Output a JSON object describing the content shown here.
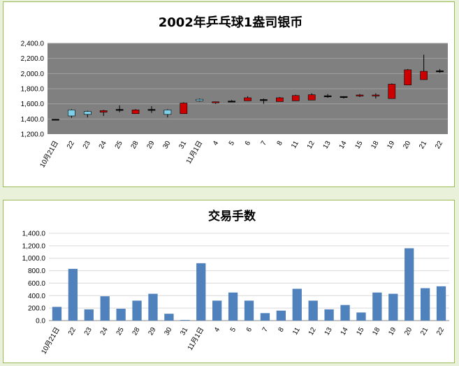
{
  "categories": [
    "10月21日",
    "22",
    "23",
    "24",
    "25",
    "28",
    "29",
    "30",
    "31",
    "11月1日",
    "4",
    "5",
    "6",
    "7",
    "8",
    "11",
    "12",
    "13",
    "14",
    "15",
    "18",
    "19",
    "20",
    "21",
    "22"
  ],
  "colors": {
    "up_candle": "#cc0000",
    "down_candle": "#7ecfe8",
    "volume_bar": "#4f81bd",
    "candle_plot_bg": "#808080",
    "grid_light": "#a0a0a0",
    "grid_volume": "#d9d9d9",
    "panel_border": "#9bbb59",
    "page_bg": "#e9f1da"
  },
  "chart_data": [
    {
      "type": "candlestick",
      "title": "2002年乒乓球1盎司银币",
      "ylim": [
        1200,
        2400
      ],
      "yticks": [
        "1,200.0",
        "1,400.0",
        "1,600.0",
        "1,800.0",
        "2,000.0",
        "2,200.0",
        "2,400.0"
      ],
      "grid": true,
      "series": [
        {
          "x": "10月21日",
          "open": 1390,
          "high": 1395,
          "low": 1385,
          "close": 1390
        },
        {
          "x": "22",
          "open": 1520,
          "high": 1530,
          "low": 1415,
          "close": 1440
        },
        {
          "x": "23",
          "open": 1500,
          "high": 1510,
          "low": 1420,
          "close": 1460
        },
        {
          "x": "24",
          "open": 1490,
          "high": 1520,
          "low": 1440,
          "close": 1510
        },
        {
          "x": "25",
          "open": 1520,
          "high": 1580,
          "low": 1490,
          "close": 1520
        },
        {
          "x": "28",
          "open": 1470,
          "high": 1530,
          "low": 1470,
          "close": 1520
        },
        {
          "x": "29",
          "open": 1520,
          "high": 1570,
          "low": 1480,
          "close": 1520
        },
        {
          "x": "30",
          "open": 1520,
          "high": 1530,
          "low": 1420,
          "close": 1460
        },
        {
          "x": "31",
          "open": 1470,
          "high": 1620,
          "low": 1470,
          "close": 1610
        },
        {
          "x": "11月1日",
          "open": 1660,
          "high": 1670,
          "low": 1630,
          "close": 1640
        },
        {
          "x": "4",
          "open": 1610,
          "high": 1630,
          "low": 1600,
          "close": 1620
        },
        {
          "x": "5",
          "open": 1630,
          "high": 1650,
          "low": 1620,
          "close": 1630
        },
        {
          "x": "6",
          "open": 1640,
          "high": 1700,
          "low": 1640,
          "close": 1680
        },
        {
          "x": "7",
          "open": 1650,
          "high": 1670,
          "low": 1600,
          "close": 1650
        },
        {
          "x": "8",
          "open": 1630,
          "high": 1690,
          "low": 1630,
          "close": 1680
        },
        {
          "x": "11",
          "open": 1640,
          "high": 1720,
          "low": 1640,
          "close": 1710
        },
        {
          "x": "12",
          "open": 1650,
          "high": 1740,
          "low": 1650,
          "close": 1720
        },
        {
          "x": "13",
          "open": 1700,
          "high": 1730,
          "low": 1680,
          "close": 1700
        },
        {
          "x": "14",
          "open": 1690,
          "high": 1700,
          "low": 1670,
          "close": 1690
        },
        {
          "x": "15",
          "open": 1700,
          "high": 1730,
          "low": 1690,
          "close": 1710
        },
        {
          "x": "18",
          "open": 1700,
          "high": 1740,
          "low": 1670,
          "close": 1710
        },
        {
          "x": "19",
          "open": 1670,
          "high": 1870,
          "low": 1670,
          "close": 1860
        },
        {
          "x": "20",
          "open": 1850,
          "high": 2060,
          "low": 1850,
          "close": 2050
        },
        {
          "x": "21",
          "open": 1920,
          "high": 2250,
          "low": 1920,
          "close": 2030
        },
        {
          "x": "22",
          "open": 2030,
          "high": 2060,
          "low": 2010,
          "close": 2030
        }
      ]
    },
    {
      "type": "bar",
      "title": "交易手数",
      "ylim": [
        0,
        1400
      ],
      "yticks": [
        "0.0",
        "200.0",
        "400.0",
        "600.0",
        "800.0",
        "1,000.0",
        "1,200.0",
        "1,400.0"
      ],
      "grid": true,
      "values": [
        220,
        830,
        180,
        390,
        190,
        320,
        430,
        110,
        10,
        920,
        320,
        450,
        320,
        120,
        160,
        510,
        320,
        180,
        250,
        130,
        450,
        430,
        1160,
        520,
        550
      ]
    }
  ]
}
